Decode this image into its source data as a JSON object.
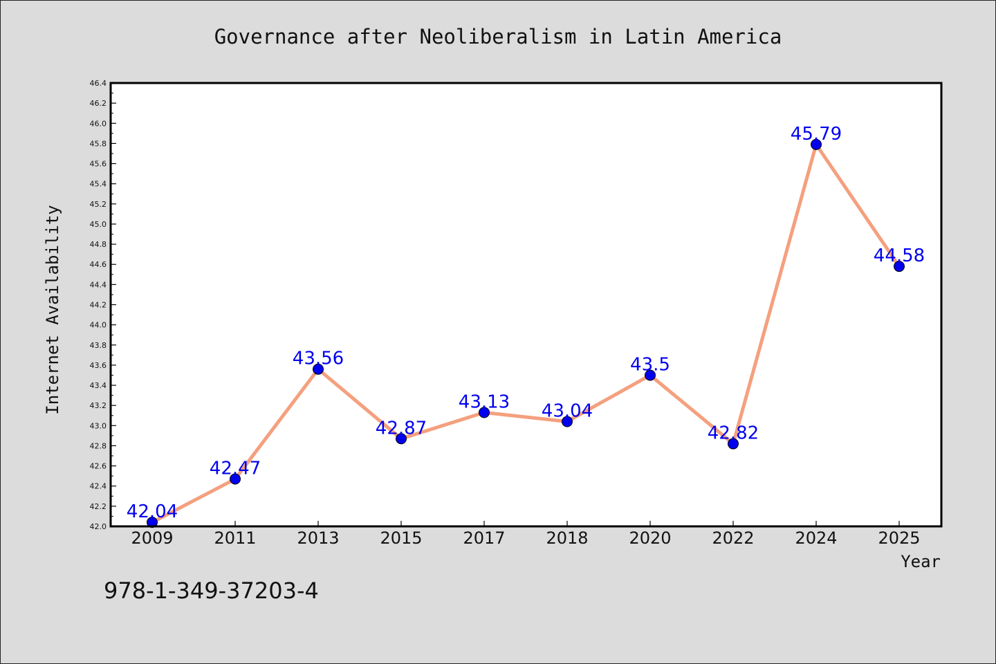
{
  "chart_data": {
    "type": "line",
    "title": "Governance after Neoliberalism in Latin America",
    "xlabel": "Year",
    "ylabel": "Internet Availability",
    "categories": [
      "2009",
      "2011",
      "2013",
      "2015",
      "2017",
      "2018",
      "2020",
      "2022",
      "2024",
      "2025"
    ],
    "series": [
      {
        "values": [
          42.04,
          42.47,
          43.56,
          42.87,
          43.13,
          43.04,
          43.5,
          42.82,
          45.79,
          44.58
        ],
        "labels": [
          "42.04",
          "42.47",
          "43.56",
          "42.87",
          "43.13",
          "43.04",
          "43.5",
          "42.82",
          "45.79",
          "44.58"
        ]
      }
    ],
    "ylim": [
      42.0,
      46.4
    ],
    "yticks": [
      "42.0",
      "42.2",
      "42.4",
      "42.6",
      "42.8",
      "43.0",
      "43.2",
      "43.4",
      "43.6",
      "43.8",
      "44.0",
      "44.2",
      "44.4",
      "44.6",
      "44.8",
      "45.0",
      "45.2",
      "45.4",
      "45.6",
      "45.8",
      "46.0",
      "46.2",
      "46.4"
    ],
    "grid": false,
    "legend": "none",
    "colors": {
      "line": "#f4a07e",
      "marker": "#0000ee",
      "label": "#0000ee",
      "plot_background": "#ffffff",
      "figure_background": "#dcdcdc"
    }
  },
  "footer": {
    "isbn": "978-1-349-37203-4"
  }
}
